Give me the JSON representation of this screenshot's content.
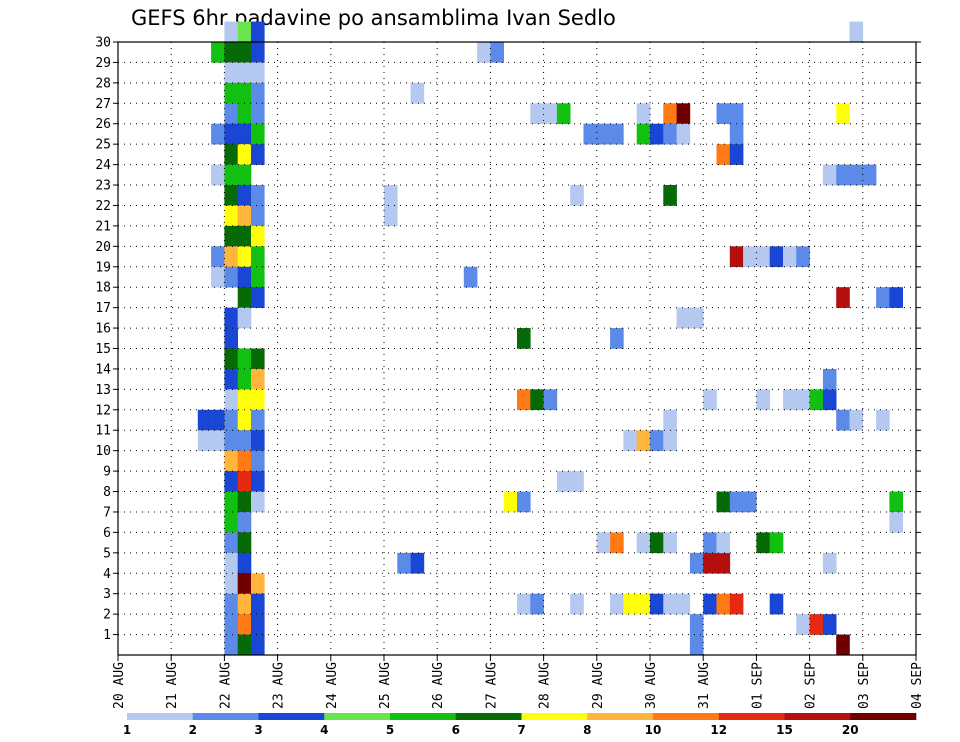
{
  "chart_data": {
    "type": "heatmap",
    "title": "GEFS 6hr padavine po ansamblima Ivan Sedlo",
    "xlabel": "",
    "ylabel": "",
    "x_tick_labels": [
      "20 AUG",
      "21 AUG",
      "22 AUG",
      "23 AUG",
      "24 AUG",
      "25 AUG",
      "26 AUG",
      "27 AUG",
      "28 AUG",
      "29 AUG",
      "30 AUG",
      "31 AUG",
      "01 SEP",
      "02 SEP",
      "03 SEP",
      "04 SEP"
    ],
    "y_tick_labels": [
      "1",
      "2",
      "3",
      "4",
      "5",
      "6",
      "7",
      "8",
      "9",
      "10",
      "11",
      "12",
      "13",
      "14",
      "15",
      "16",
      "17",
      "18",
      "19",
      "20",
      "21",
      "22",
      "23",
      "24",
      "25",
      "26",
      "27",
      "28",
      "29",
      "30"
    ],
    "x_unit": "6-hour step (0 = 20 AUG 00Z)",
    "ylim": [
      0,
      30
    ],
    "grid": true,
    "legend": "colorbar bottom",
    "colorbar": {
      "levels": [
        "1",
        "2",
        "3",
        "4",
        "5",
        "6",
        "7",
        "8",
        "10",
        "12",
        "15",
        "20"
      ],
      "colors": [
        "#b4c8f0",
        "#5c8ae8",
        "#1a46d6",
        "#68e44c",
        "#12c012",
        "#066a06",
        "#ffff0c",
        "#ffb43c",
        "#ff7a14",
        "#e62a12",
        "#b40e0e",
        "#700000"
      ]
    },
    "cells": [
      [
        8,
        30,
        1
      ],
      [
        9,
        30,
        4
      ],
      [
        10,
        30,
        3
      ],
      [
        7,
        29,
        5
      ],
      [
        8,
        29,
        6
      ],
      [
        9,
        29,
        6
      ],
      [
        10,
        29,
        3
      ],
      [
        8,
        28,
        1
      ],
      [
        9,
        28,
        1
      ],
      [
        10,
        28,
        1
      ],
      [
        8,
        27,
        5
      ],
      [
        9,
        27,
        5
      ],
      [
        10,
        27,
        2
      ],
      [
        8,
        26,
        2
      ],
      [
        9,
        26,
        5
      ],
      [
        10,
        26,
        2
      ],
      [
        7,
        25,
        2
      ],
      [
        8,
        25,
        3
      ],
      [
        9,
        25,
        3
      ],
      [
        10,
        25,
        5
      ],
      [
        8,
        24,
        6
      ],
      [
        9,
        24,
        7
      ],
      [
        10,
        24,
        3
      ],
      [
        7,
        23,
        1
      ],
      [
        8,
        23,
        5
      ],
      [
        9,
        23,
        5
      ],
      [
        8,
        22,
        6
      ],
      [
        9,
        22,
        3
      ],
      [
        10,
        22,
        2
      ],
      [
        8,
        21,
        7
      ],
      [
        9,
        21,
        8
      ],
      [
        10,
        21,
        2
      ],
      [
        8,
        20,
        6
      ],
      [
        9,
        20,
        6
      ],
      [
        10,
        20,
        7
      ],
      [
        7,
        19,
        2
      ],
      [
        8,
        19,
        8
      ],
      [
        9,
        19,
        7
      ],
      [
        10,
        19,
        5
      ],
      [
        7,
        18,
        1
      ],
      [
        8,
        18,
        2
      ],
      [
        9,
        18,
        3
      ],
      [
        10,
        18,
        5
      ],
      [
        9,
        17,
        6
      ],
      [
        10,
        17,
        3
      ],
      [
        8,
        16,
        3
      ],
      [
        9,
        16,
        1
      ],
      [
        8,
        15,
        3
      ],
      [
        8,
        14,
        6
      ],
      [
        9,
        14,
        5
      ],
      [
        10,
        14,
        6
      ],
      [
        8,
        13,
        3
      ],
      [
        9,
        13,
        5
      ],
      [
        10,
        13,
        8
      ],
      [
        8,
        12,
        1
      ],
      [
        9,
        12,
        7
      ],
      [
        10,
        12,
        7
      ],
      [
        6,
        11,
        3
      ],
      [
        7,
        11,
        3
      ],
      [
        8,
        11,
        2
      ],
      [
        9,
        11,
        7
      ],
      [
        10,
        11,
        2
      ],
      [
        6,
        10,
        1
      ],
      [
        7,
        10,
        1
      ],
      [
        8,
        10,
        2
      ],
      [
        9,
        10,
        2
      ],
      [
        10,
        10,
        3
      ],
      [
        8,
        9,
        8
      ],
      [
        9,
        9,
        9
      ],
      [
        10,
        9,
        2
      ],
      [
        8,
        8,
        3
      ],
      [
        9,
        8,
        10
      ],
      [
        10,
        8,
        3
      ],
      [
        8,
        7,
        5
      ],
      [
        9,
        7,
        6
      ],
      [
        10,
        7,
        1
      ],
      [
        8,
        6,
        5
      ],
      [
        9,
        6,
        2
      ],
      [
        8,
        5,
        2
      ],
      [
        9,
        5,
        6
      ],
      [
        8,
        4,
        1
      ],
      [
        9,
        4,
        3
      ],
      [
        8,
        3,
        1
      ],
      [
        9,
        3,
        12
      ],
      [
        10,
        3,
        8
      ],
      [
        8,
        2,
        2
      ],
      [
        9,
        2,
        8
      ],
      [
        10,
        2,
        3
      ],
      [
        8,
        1,
        2
      ],
      [
        9,
        1,
        9
      ],
      [
        10,
        1,
        3
      ],
      [
        8,
        0,
        2
      ],
      [
        9,
        0,
        6
      ],
      [
        10,
        0,
        3
      ],
      [
        20,
        22,
        1
      ],
      [
        20,
        21,
        1
      ],
      [
        21,
        4,
        2
      ],
      [
        22,
        4,
        3
      ],
      [
        22,
        27,
        1
      ],
      [
        27,
        29,
        1
      ],
      [
        28,
        29,
        2
      ],
      [
        26,
        18,
        2
      ],
      [
        29,
        7,
        7
      ],
      [
        30,
        7,
        2
      ],
      [
        30,
        15,
        6
      ],
      [
        30,
        12,
        9
      ],
      [
        31,
        12,
        6
      ],
      [
        32,
        12,
        2
      ],
      [
        30,
        2,
        1
      ],
      [
        31,
        2,
        2
      ],
      [
        31,
        26,
        1
      ],
      [
        32,
        26,
        1
      ],
      [
        33,
        26,
        5
      ],
      [
        33,
        8,
        1
      ],
      [
        34,
        8,
        1
      ],
      [
        34,
        22,
        1
      ],
      [
        34,
        2,
        1
      ],
      [
        35,
        25,
        2
      ],
      [
        36,
        25,
        2
      ],
      [
        37,
        25,
        2
      ],
      [
        37,
        15,
        2
      ],
      [
        37,
        2,
        1
      ],
      [
        36,
        5,
        1
      ],
      [
        37,
        5,
        9
      ],
      [
        38,
        10,
        1
      ],
      [
        38,
        2,
        7
      ],
      [
        39,
        10,
        8
      ],
      [
        39,
        2,
        7
      ],
      [
        39,
        5,
        1
      ],
      [
        39,
        26,
        1
      ],
      [
        39,
        25,
        5
      ],
      [
        40,
        10,
        2
      ],
      [
        40,
        5,
        6
      ],
      [
        40,
        25,
        3
      ],
      [
        40,
        2,
        3
      ],
      [
        41,
        11,
        1
      ],
      [
        41,
        10,
        1
      ],
      [
        41,
        5,
        1
      ],
      [
        41,
        26,
        9
      ],
      [
        41,
        25,
        2
      ],
      [
        41,
        22,
        6
      ],
      [
        41,
        2,
        1
      ],
      [
        42,
        26,
        12
      ],
      [
        42,
        25,
        1
      ],
      [
        42,
        16,
        1
      ],
      [
        42,
        2,
        1
      ],
      [
        43,
        16,
        1
      ],
      [
        43,
        4,
        2
      ],
      [
        43,
        1,
        2
      ],
      [
        43,
        0,
        2
      ],
      [
        44,
        12,
        1
      ],
      [
        44,
        4,
        11
      ],
      [
        44,
        5,
        2
      ],
      [
        44,
        2,
        3
      ],
      [
        45,
        26,
        2
      ],
      [
        45,
        24,
        9
      ],
      [
        45,
        7,
        6
      ],
      [
        45,
        4,
        11
      ],
      [
        45,
        5,
        1
      ],
      [
        45,
        2,
        9
      ],
      [
        46,
        26,
        2
      ],
      [
        46,
        25,
        2
      ],
      [
        46,
        24,
        3
      ],
      [
        46,
        19,
        11
      ],
      [
        46,
        7,
        2
      ],
      [
        46,
        2,
        10
      ],
      [
        47,
        19,
        1
      ],
      [
        47,
        7,
        2
      ],
      [
        48,
        19,
        1
      ],
      [
        48,
        5,
        6
      ],
      [
        48,
        12,
        1
      ],
      [
        49,
        19,
        3
      ],
      [
        49,
        5,
        5
      ],
      [
        49,
        2,
        3
      ],
      [
        50,
        19,
        1
      ],
      [
        50,
        12,
        1
      ],
      [
        51,
        19,
        2
      ],
      [
        51,
        12,
        1
      ],
      [
        51,
        1,
        1
      ],
      [
        52,
        12,
        5
      ],
      [
        52,
        1,
        10
      ],
      [
        53,
        12,
        3
      ],
      [
        53,
        13,
        2
      ],
      [
        53,
        23,
        1
      ],
      [
        53,
        4,
        1
      ],
      [
        53,
        1,
        3
      ],
      [
        54,
        26,
        7
      ],
      [
        54,
        23,
        2
      ],
      [
        54,
        17,
        11
      ],
      [
        54,
        11,
        2
      ],
      [
        54,
        0,
        12
      ],
      [
        55,
        23,
        2
      ],
      [
        55,
        11,
        1
      ],
      [
        55,
        30,
        1
      ],
      [
        56,
        23,
        2
      ],
      [
        57,
        17,
        2
      ],
      [
        57,
        11,
        1
      ],
      [
        58,
        17,
        3
      ],
      [
        58,
        7,
        5
      ],
      [
        58,
        6,
        1
      ]
    ]
  }
}
